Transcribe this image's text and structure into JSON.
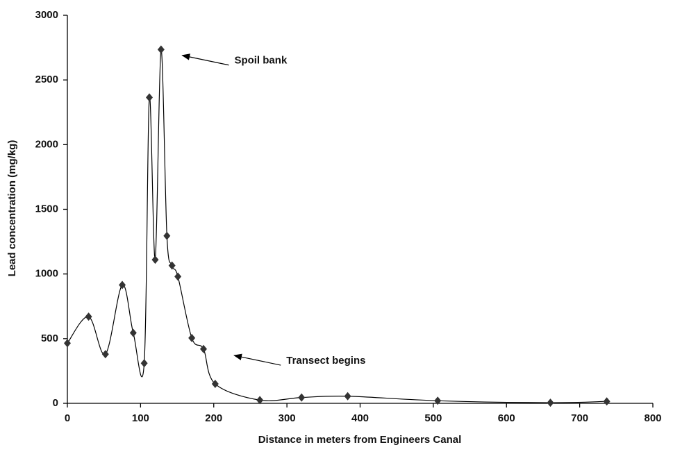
{
  "chart_data": {
    "type": "line",
    "x_label": "Distance in meters from Engineers Canal",
    "y_label": "Lead concentration (mg/kg)",
    "x": [
      0,
      29,
      52,
      75,
      90,
      105,
      112,
      120,
      128,
      136,
      143,
      151,
      170,
      186,
      202,
      263,
      320,
      383,
      506,
      660,
      737
    ],
    "series": [
      {
        "color": "#333333",
        "values": [
          465,
          670,
          380,
          915,
          545,
          310,
          2365,
          1110,
          2735,
          1295,
          1065,
          980,
          505,
          420,
          150,
          25,
          45,
          55,
          20,
          5,
          15
        ]
      }
    ],
    "xlim": [
      0,
      800
    ],
    "xticks": [
      0,
      100,
      200,
      300,
      400,
      500,
      600,
      700,
      800
    ],
    "ylim": [
      0,
      3000
    ],
    "yticks": [
      0,
      500,
      1000,
      1500,
      2000,
      2500,
      3000
    ],
    "grid": false,
    "annotations": [
      {
        "text": "Spoil bank",
        "x": 157,
        "y": 2690
      },
      {
        "text": "Transect begins",
        "x": 228,
        "y": 370
      }
    ]
  }
}
